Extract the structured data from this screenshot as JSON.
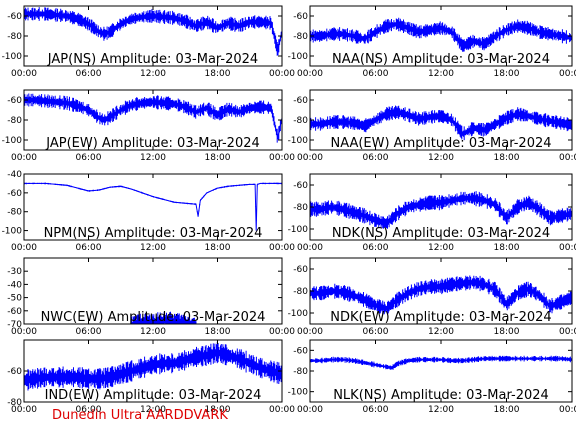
{
  "footer": "Dunedin Ultra AARDDVARK",
  "colors": {
    "trace": "#0000ff",
    "footer": "#dd0000",
    "frame": "#000000"
  },
  "x_ticks": [
    "00:00",
    "06:00",
    "12:00",
    "18:00",
    "00:00"
  ],
  "chart_data": [
    {
      "type": "line",
      "title": "JAP(NS) Amplitude: 03-Mar-2024",
      "xlim": [
        0,
        24
      ],
      "ylim": [
        -110,
        -50
      ],
      "yticks": [
        -60,
        -80,
        -100
      ],
      "series": [
        {
          "x": [
            0,
            1,
            2,
            3,
            4,
            5,
            6,
            7,
            7.5,
            8,
            9,
            10,
            11,
            12,
            13,
            14,
            15,
            16,
            17,
            18,
            19,
            20,
            21,
            22,
            23,
            23.6,
            24
          ],
          "y": [
            -58,
            -58,
            -58,
            -59,
            -60,
            -63,
            -68,
            -76,
            -78,
            -76,
            -68,
            -63,
            -61,
            -60,
            -61,
            -62,
            -65,
            -70,
            -66,
            -72,
            -67,
            -70,
            -66,
            -66,
            -67,
            -95,
            -75
          ]
        }
      ]
    },
    {
      "type": "line",
      "title": "NAA(NS) Amplitude: 03-Mar-2024",
      "xlim": [
        0,
        24
      ],
      "ylim": [
        -110,
        -50
      ],
      "yticks": [
        -60,
        -80,
        -100
      ],
      "series": [
        {
          "x": [
            0,
            1,
            2,
            3,
            4,
            5,
            6,
            7,
            8,
            9,
            10,
            11,
            12,
            13,
            14,
            15,
            16,
            17,
            18,
            19,
            20,
            21,
            22,
            23,
            24
          ],
          "y": [
            -80,
            -80,
            -78,
            -78,
            -80,
            -83,
            -76,
            -70,
            -68,
            -72,
            -76,
            -74,
            -72,
            -76,
            -90,
            -85,
            -88,
            -80,
            -74,
            -70,
            -72,
            -76,
            -78,
            -80,
            -82
          ]
        }
      ]
    },
    {
      "type": "line",
      "title": "JAP(EW) Amplitude: 03-Mar-2024",
      "xlim": [
        0,
        24
      ],
      "ylim": [
        -110,
        -50
      ],
      "yticks": [
        -60,
        -80,
        -100
      ],
      "series": [
        {
          "x": [
            0,
            1,
            2,
            3,
            4,
            5,
            6,
            7,
            7.5,
            8,
            9,
            10,
            11,
            12,
            13,
            14,
            15,
            16,
            17,
            18,
            19,
            20,
            21,
            22,
            23,
            23.6,
            24
          ],
          "y": [
            -60,
            -60,
            -61,
            -62,
            -63,
            -66,
            -70,
            -78,
            -80,
            -77,
            -70,
            -65,
            -63,
            -62,
            -63,
            -64,
            -67,
            -72,
            -68,
            -75,
            -69,
            -72,
            -68,
            -67,
            -68,
            -98,
            -78
          ]
        }
      ]
    },
    {
      "type": "line",
      "title": "NAA(EW) Amplitude: 03-Mar-2024",
      "xlim": [
        0,
        24
      ],
      "ylim": [
        -110,
        -50
      ],
      "yticks": [
        -60,
        -80,
        -100
      ],
      "series": [
        {
          "x": [
            0,
            1,
            2,
            3,
            4,
            5,
            6,
            7,
            8,
            9,
            10,
            11,
            12,
            13,
            14,
            15,
            16,
            17,
            18,
            19,
            20,
            21,
            22,
            23,
            24
          ],
          "y": [
            -84,
            -84,
            -82,
            -82,
            -83,
            -86,
            -80,
            -74,
            -72,
            -75,
            -79,
            -77,
            -76,
            -80,
            -94,
            -88,
            -90,
            -84,
            -78,
            -74,
            -76,
            -79,
            -81,
            -83,
            -85
          ]
        }
      ]
    },
    {
      "type": "line",
      "title": "NPM(NS) Amplitude: 03-Mar-2024",
      "xlim": [
        0,
        24
      ],
      "ylim": [
        -110,
        -40
      ],
      "yticks": [
        -40,
        -60,
        -80,
        -100
      ],
      "series": [
        {
          "x": [
            0,
            1,
            2,
            3,
            4,
            5,
            6,
            7,
            8,
            9,
            10,
            11,
            12,
            13,
            14,
            15,
            16,
            16.2,
            16.4,
            17,
            18,
            19,
            20,
            21,
            21.5,
            21.6,
            21.7,
            22,
            23,
            24
          ],
          "y": [
            -50,
            -50,
            -50,
            -51,
            -52,
            -55,
            -58,
            -57,
            -54,
            -53,
            -56,
            -60,
            -64,
            -67,
            -70,
            -71,
            -72,
            -85,
            -68,
            -60,
            -55,
            -53,
            -52,
            -51,
            -51,
            -100,
            -51,
            -50,
            -50,
            -50
          ]
        }
      ]
    },
    {
      "type": "line",
      "title": "NDK(NS) Amplitude: 03-Mar-2024",
      "xlim": [
        0,
        24
      ],
      "ylim": [
        -110,
        -50
      ],
      "yticks": [
        -60,
        -80,
        -100
      ],
      "series": [
        {
          "x": [
            0,
            1,
            2,
            3,
            4,
            5,
            6,
            7,
            8,
            9,
            10,
            11,
            12,
            13,
            14,
            15,
            16,
            17,
            18,
            19,
            20,
            21,
            22,
            23,
            24
          ],
          "y": [
            -82,
            -82,
            -80,
            -82,
            -85,
            -88,
            -92,
            -95,
            -86,
            -80,
            -78,
            -76,
            -76,
            -74,
            -72,
            -72,
            -74,
            -78,
            -90,
            -80,
            -76,
            -82,
            -90,
            -88,
            -86
          ]
        }
      ]
    },
    {
      "type": "line",
      "title": "NWC(EW) Amplitude: 03-Mar-2024",
      "xlim": [
        0,
        24
      ],
      "ylim": [
        -70,
        -20
      ],
      "yticks": [
        -30,
        -40,
        -50,
        -60,
        -70
      ],
      "series": [
        {
          "x": [
            10,
            11,
            12,
            13,
            14,
            15,
            16
          ],
          "y": [
            -71,
            -68,
            -69,
            -67,
            -68,
            -69,
            -71
          ]
        }
      ]
    },
    {
      "type": "line",
      "title": "NDK(EW) Amplitude: 03-Mar-2024",
      "xlim": [
        0,
        24
      ],
      "ylim": [
        -110,
        -50
      ],
      "yticks": [
        -60,
        -80,
        -100
      ],
      "series": [
        {
          "x": [
            0,
            1,
            2,
            3,
            4,
            5,
            6,
            7,
            8,
            9,
            10,
            11,
            12,
            13,
            14,
            15,
            16,
            17,
            18,
            19,
            20,
            21,
            22,
            23,
            24
          ],
          "y": [
            -82,
            -82,
            -80,
            -81,
            -84,
            -88,
            -93,
            -96,
            -88,
            -82,
            -78,
            -76,
            -76,
            -74,
            -73,
            -72,
            -74,
            -79,
            -92,
            -82,
            -78,
            -84,
            -94,
            -90,
            -86
          ]
        }
      ]
    },
    {
      "type": "line",
      "title": "IND(EW) Amplitude: 03-Mar-2024",
      "xlim": [
        0,
        24
      ],
      "ylim": [
        -80,
        -40
      ],
      "yticks": [
        -60,
        -80
      ],
      "series": [
        {
          "x": [
            0,
            1,
            2,
            3,
            4,
            5,
            6,
            7,
            8,
            9,
            10,
            11,
            12,
            13,
            14,
            15,
            16,
            17,
            18,
            19,
            20,
            21,
            22,
            23,
            24
          ],
          "y": [
            -66,
            -65,
            -64,
            -64,
            -64,
            -64,
            -65,
            -65,
            -64,
            -62,
            -60,
            -58,
            -56,
            -55,
            -55,
            -53,
            -51,
            -50,
            -48,
            -50,
            -52,
            -55,
            -58,
            -60,
            -62
          ]
        }
      ]
    },
    {
      "type": "line",
      "title": "NLK(NS) Amplitude: 03-Mar-2024",
      "xlim": [
        0,
        24
      ],
      "ylim": [
        -110,
        -50
      ],
      "yticks": [
        -60,
        -80,
        -100
      ],
      "series": [
        {
          "x": [
            0,
            1,
            2,
            3,
            4,
            5,
            6,
            7,
            7.5,
            8,
            9,
            10,
            11,
            12,
            13,
            14,
            15,
            16,
            17,
            18,
            19,
            20,
            21,
            22,
            23,
            24
          ],
          "y": [
            -70,
            -70,
            -69,
            -69,
            -70,
            -72,
            -74,
            -76,
            -77,
            -73,
            -70,
            -69,
            -69,
            -69,
            -70,
            -70,
            -69,
            -68,
            -68,
            -68,
            -68,
            -68,
            -68,
            -68,
            -68,
            -69
          ]
        }
      ]
    }
  ]
}
